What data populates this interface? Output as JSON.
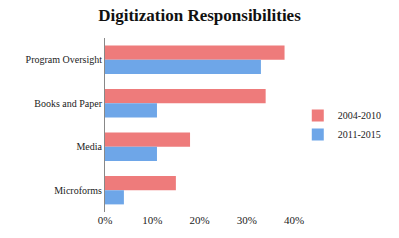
{
  "chart_data": {
    "type": "bar",
    "title": "Digitization Responsibilities",
    "orientation": "horizontal",
    "categories": [
      "Program Oversight",
      "Books and Paper",
      "Media",
      "Microforms"
    ],
    "series": [
      {
        "name": "2004-2010",
        "color": "#ee7b7b",
        "values": [
          38,
          34,
          18,
          15
        ]
      },
      {
        "name": "2011-2015",
        "color": "#6ea6e8",
        "values": [
          33,
          11,
          11,
          4
        ]
      }
    ],
    "xlim": [
      0,
      40
    ],
    "xticks": [
      {
        "value": 0,
        "label": "0%"
      },
      {
        "value": 10,
        "label": "10%"
      },
      {
        "value": 20,
        "label": "20%"
      },
      {
        "value": 30,
        "label": "30%"
      },
      {
        "value": 40,
        "label": "40%"
      }
    ],
    "grid": false,
    "legend": "right"
  }
}
